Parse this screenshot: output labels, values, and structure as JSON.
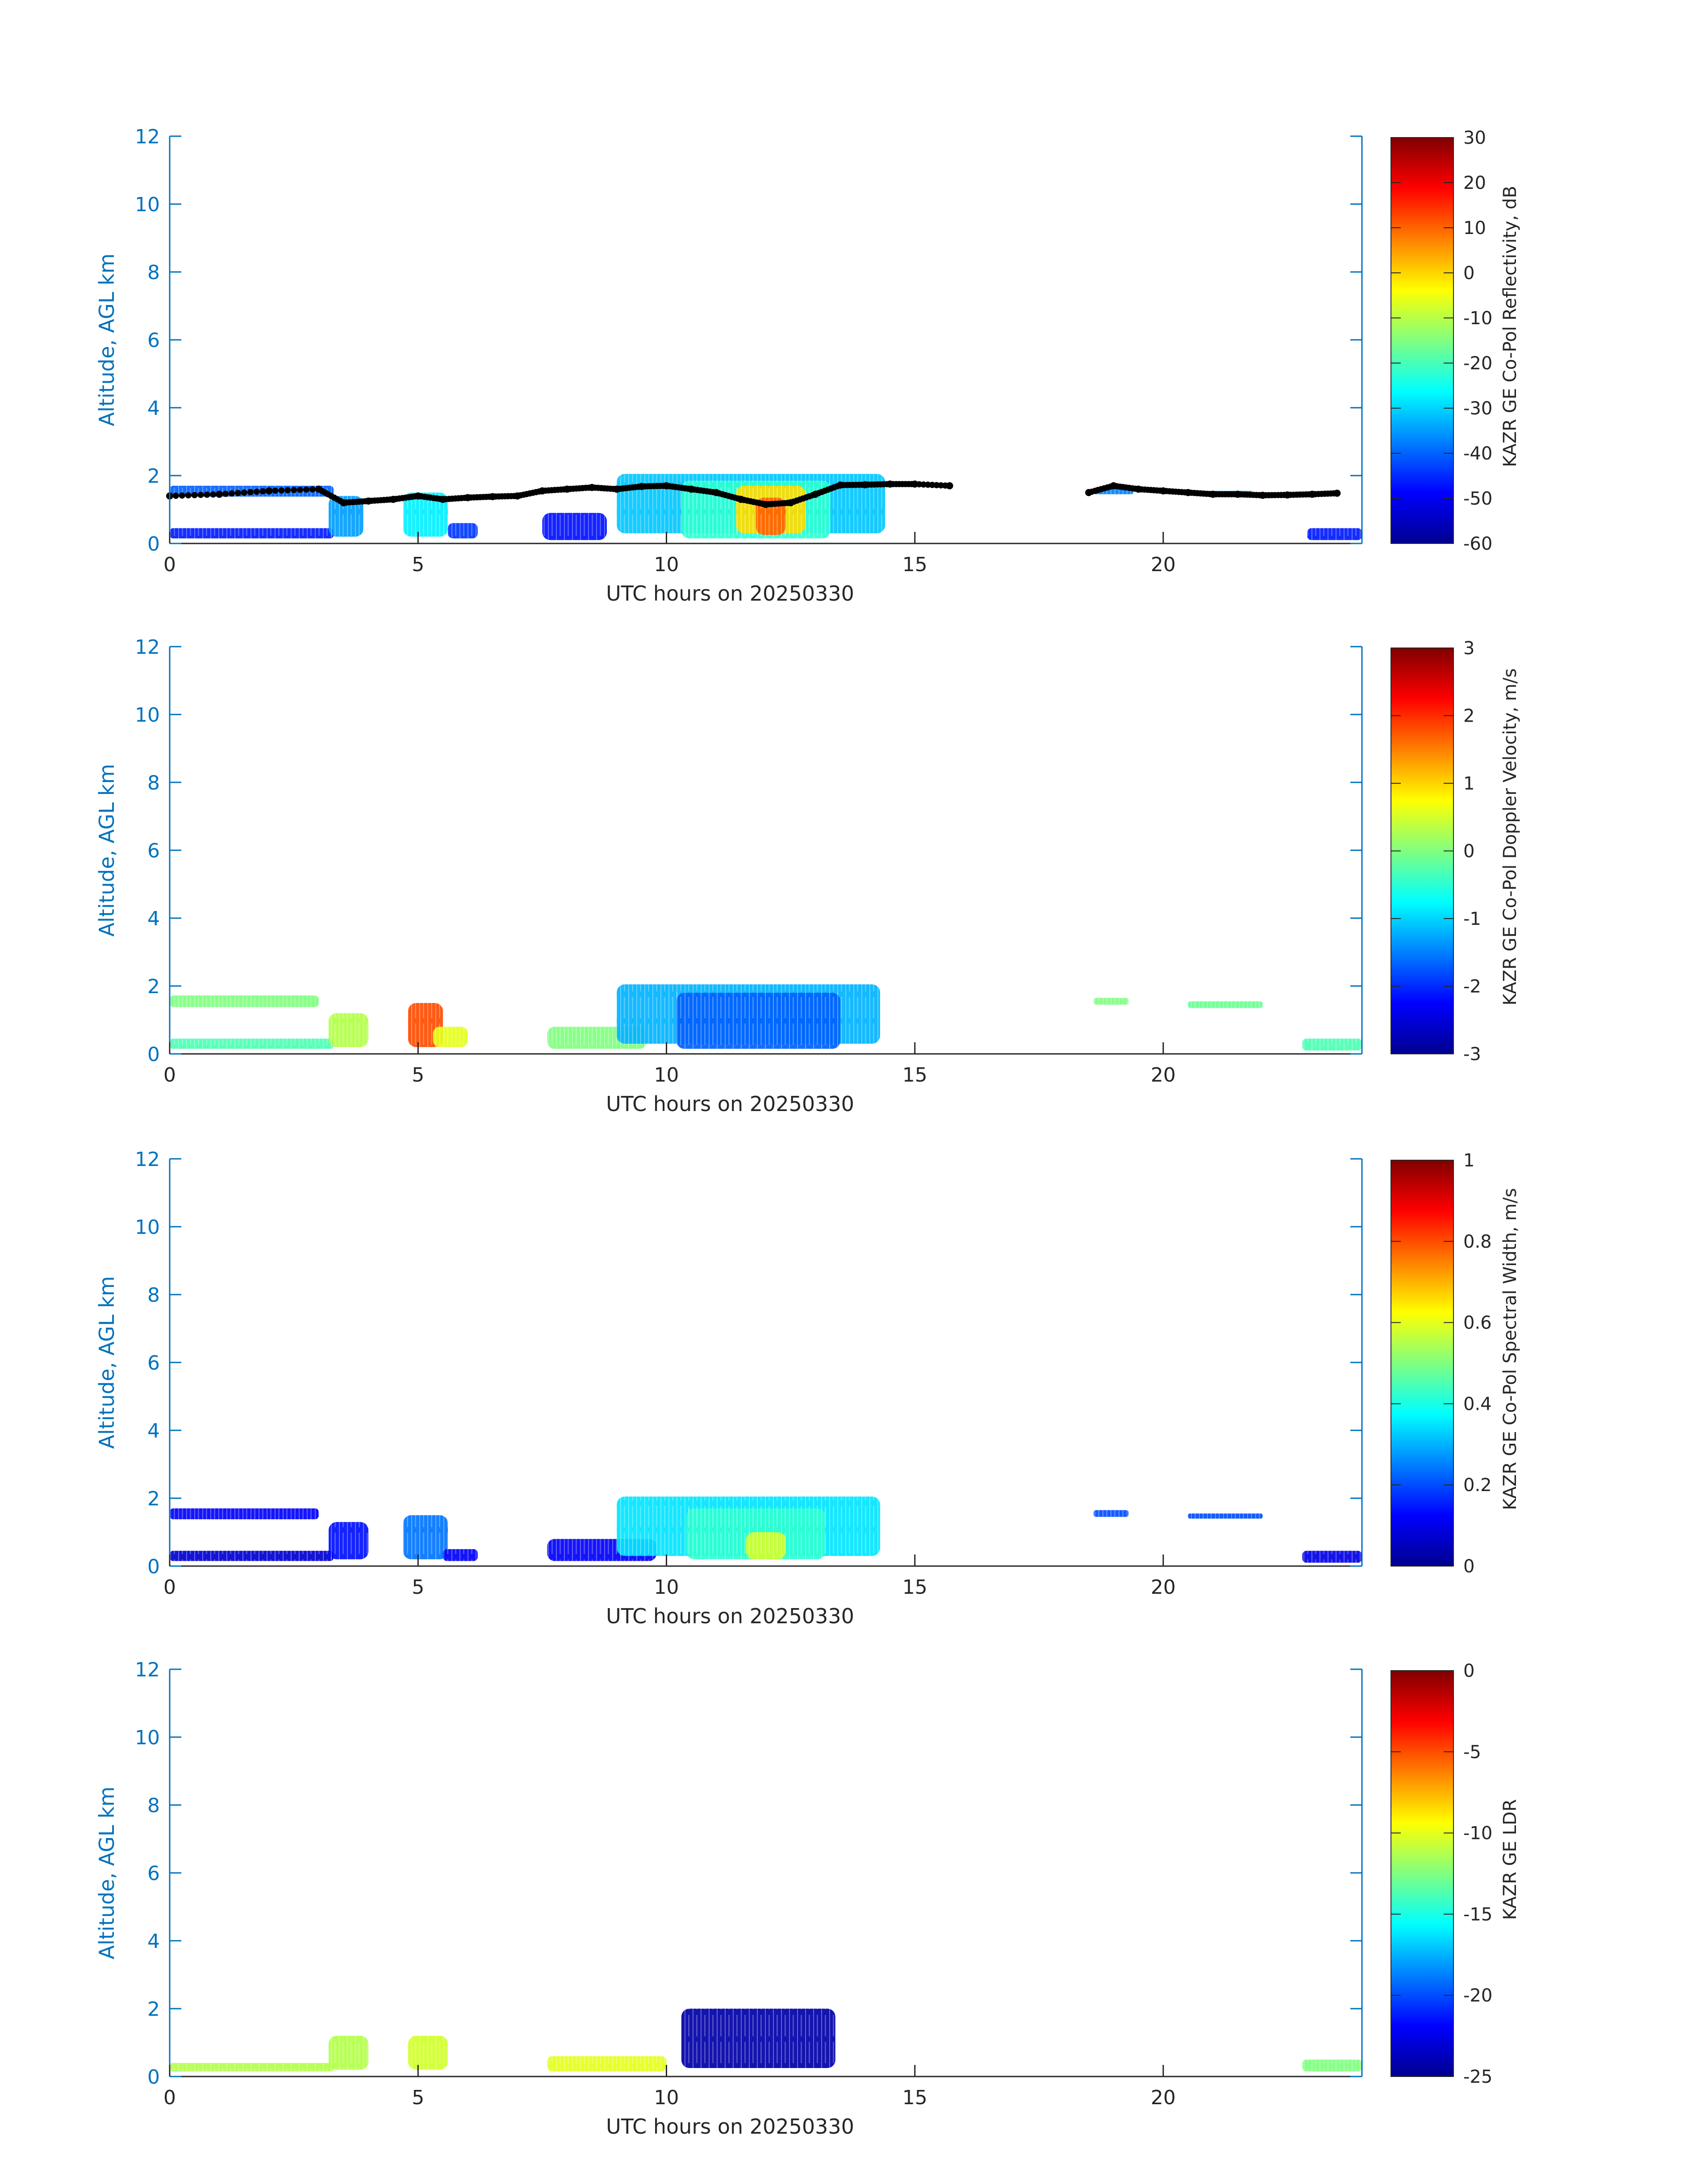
{
  "figure": {
    "panels": [
      {
        "colorbar_label": "KAZR GE Co-Pol Reflectivity, dB",
        "colorbar_ticks": [
          "30",
          "20",
          "10",
          "0",
          "-10",
          "-20",
          "-30",
          "-40",
          "-50",
          "-60"
        ],
        "clim": [
          -60,
          30
        ],
        "has_cloud_base": true,
        "blobs": [
          {
            "x0": 0.0,
            "x1": 3.3,
            "y0": 1.38,
            "y1": 1.7,
            "v": 0.22
          },
          {
            "x0": 0.0,
            "x1": 3.3,
            "y0": 0.15,
            "y1": 0.45,
            "v": 0.15
          },
          {
            "x0": 3.2,
            "x1": 3.9,
            "y0": 0.2,
            "y1": 1.4,
            "v": 0.28
          },
          {
            "x0": 4.7,
            "x1": 5.6,
            "y0": 0.2,
            "y1": 1.5,
            "v": 0.36
          },
          {
            "x0": 5.6,
            "x1": 6.2,
            "y0": 0.15,
            "y1": 0.6,
            "v": 0.18
          },
          {
            "x0": 7.5,
            "x1": 8.8,
            "y0": 0.1,
            "y1": 0.9,
            "v": 0.14
          },
          {
            "x0": 9.0,
            "x1": 14.4,
            "y0": 0.3,
            "y1": 2.05,
            "v": 0.32
          },
          {
            "x0": 10.3,
            "x1": 13.3,
            "y0": 0.15,
            "y1": 1.85,
            "v": 0.42
          },
          {
            "x0": 11.4,
            "x1": 12.8,
            "y0": 0.3,
            "y1": 1.7,
            "v": 0.66
          },
          {
            "x0": 11.8,
            "x1": 12.4,
            "y0": 0.25,
            "y1": 1.35,
            "v": 0.78
          },
          {
            "x0": 18.6,
            "x1": 19.4,
            "y0": 1.45,
            "y1": 1.65,
            "v": 0.25
          },
          {
            "x0": 20.6,
            "x1": 21.8,
            "y0": 1.4,
            "y1": 1.55,
            "v": 0.27
          },
          {
            "x0": 22.9,
            "x1": 24.0,
            "y0": 0.1,
            "y1": 0.45,
            "v": 0.15
          }
        ]
      },
      {
        "colorbar_label": "KAZR GE Co-Pol Doppler Velocity, m/s",
        "colorbar_ticks": [
          "3",
          "2",
          "1",
          "0",
          "-1",
          "-2",
          "-3"
        ],
        "clim": [
          -3,
          3
        ],
        "has_cloud_base": false,
        "blobs": [
          {
            "x0": 0.0,
            "x1": 3.0,
            "y0": 1.38,
            "y1": 1.72,
            "v": 0.5
          },
          {
            "x0": 0.0,
            "x1": 3.3,
            "y0": 0.15,
            "y1": 0.45,
            "v": 0.45
          },
          {
            "x0": 3.2,
            "x1": 4.0,
            "y0": 0.2,
            "y1": 1.2,
            "v": 0.55
          },
          {
            "x0": 4.8,
            "x1": 5.5,
            "y0": 0.2,
            "y1": 1.5,
            "v": 0.8
          },
          {
            "x0": 5.3,
            "x1": 6.0,
            "y0": 0.2,
            "y1": 0.8,
            "v": 0.6
          },
          {
            "x0": 7.6,
            "x1": 9.6,
            "y0": 0.15,
            "y1": 0.8,
            "v": 0.5
          },
          {
            "x0": 9.0,
            "x1": 14.3,
            "y0": 0.3,
            "y1": 2.05,
            "v": 0.3
          },
          {
            "x0": 10.2,
            "x1": 13.5,
            "y0": 0.15,
            "y1": 1.8,
            "v": 0.22
          },
          {
            "x0": 18.6,
            "x1": 19.3,
            "y0": 1.45,
            "y1": 1.65,
            "v": 0.5
          },
          {
            "x0": 20.5,
            "x1": 22.0,
            "y0": 1.35,
            "y1": 1.55,
            "v": 0.48
          },
          {
            "x0": 22.8,
            "x1": 24.0,
            "y0": 0.1,
            "y1": 0.45,
            "v": 0.45
          }
        ]
      },
      {
        "colorbar_label": "KAZR GE Co-Pol Spectral Width, m/s",
        "colorbar_ticks": [
          "1",
          "0.8",
          "0.6",
          "0.4",
          "0.2",
          "0"
        ],
        "clim": [
          0,
          1
        ],
        "has_cloud_base": false,
        "blobs": [
          {
            "x0": 0.0,
            "x1": 3.0,
            "y0": 1.38,
            "y1": 1.7,
            "v": 0.12
          },
          {
            "x0": 0.0,
            "x1": 3.3,
            "y0": 0.15,
            "y1": 0.45,
            "v": 0.08
          },
          {
            "x0": 3.2,
            "x1": 4.0,
            "y0": 0.2,
            "y1": 1.3,
            "v": 0.14
          },
          {
            "x0": 4.7,
            "x1": 5.6,
            "y0": 0.2,
            "y1": 1.5,
            "v": 0.24
          },
          {
            "x0": 5.5,
            "x1": 6.2,
            "y0": 0.15,
            "y1": 0.5,
            "v": 0.12
          },
          {
            "x0": 7.6,
            "x1": 9.8,
            "y0": 0.15,
            "y1": 0.8,
            "v": 0.12
          },
          {
            "x0": 9.0,
            "x1": 14.3,
            "y0": 0.3,
            "y1": 2.05,
            "v": 0.35
          },
          {
            "x0": 10.4,
            "x1": 13.2,
            "y0": 0.2,
            "y1": 1.7,
            "v": 0.42
          },
          {
            "x0": 11.6,
            "x1": 12.4,
            "y0": 0.2,
            "y1": 1.0,
            "v": 0.58
          },
          {
            "x0": 18.6,
            "x1": 19.3,
            "y0": 1.45,
            "y1": 1.65,
            "v": 0.2
          },
          {
            "x0": 20.5,
            "x1": 22.0,
            "y0": 1.4,
            "y1": 1.55,
            "v": 0.2
          },
          {
            "x0": 22.8,
            "x1": 24.0,
            "y0": 0.1,
            "y1": 0.45,
            "v": 0.1
          }
        ]
      },
      {
        "colorbar_label": "KAZR GE LDR",
        "colorbar_ticks": [
          "0",
          "-5",
          "-10",
          "-15",
          "-20",
          "-25"
        ],
        "clim": [
          -25,
          0
        ],
        "has_cloud_base": false,
        "blobs": [
          {
            "x0": 0.0,
            "x1": 3.3,
            "y0": 0.15,
            "y1": 0.4,
            "v": 0.55
          },
          {
            "x0": 3.2,
            "x1": 4.0,
            "y0": 0.2,
            "y1": 1.2,
            "v": 0.55
          },
          {
            "x0": 4.8,
            "x1": 5.6,
            "y0": 0.2,
            "y1": 1.2,
            "v": 0.58
          },
          {
            "x0": 7.6,
            "x1": 10.0,
            "y0": 0.15,
            "y1": 0.6,
            "v": 0.6
          },
          {
            "x0": 10.3,
            "x1": 13.4,
            "y0": 0.25,
            "y1": 2.0,
            "v": 0.04
          },
          {
            "x0": 22.8,
            "x1": 24.0,
            "y0": 0.15,
            "y1": 0.5,
            "v": 0.5
          }
        ]
      }
    ],
    "ylabel": "Altitude, AGL km",
    "xlabel": "UTC hours on 20250330",
    "yticks": [
      "0",
      "2",
      "4",
      "6",
      "8",
      "10",
      "12"
    ],
    "xticks": [
      "0",
      "5",
      "10",
      "15",
      "20"
    ],
    "axis_color": "#0072BD",
    "colormap": "jet"
  },
  "chart_data": [
    {
      "type": "heatmap",
      "xlabel": "UTC hours on 20250330",
      "ylabel": "Altitude, AGL km",
      "xlim": [
        0,
        24
      ],
      "ylim": [
        0,
        12
      ],
      "colorbar": {
        "label": "KAZR GE Co-Pol Reflectivity, dB",
        "range": [
          -60,
          30
        ],
        "ticks": [
          30,
          20,
          10,
          0,
          -10,
          -20,
          -30,
          -40,
          -50,
          -60
        ],
        "colormap": "jet"
      },
      "overlay": {
        "type": "scatter",
        "color": "#000000",
        "x": [
          0,
          1,
          2,
          3,
          3.5,
          4,
          4.5,
          5,
          5.5,
          6,
          6.5,
          7,
          7.5,
          8,
          8.5,
          9,
          9.5,
          10,
          10.5,
          11,
          11.5,
          12,
          12.5,
          13,
          13.5,
          14,
          14.5,
          15,
          15.7,
          18.5,
          19,
          19.5,
          20,
          20.5,
          21,
          21.5,
          22,
          22.5,
          23,
          23.5
        ],
        "y": [
          1.4,
          1.45,
          1.55,
          1.6,
          1.2,
          1.25,
          1.3,
          1.4,
          1.3,
          1.35,
          1.38,
          1.4,
          1.55,
          1.6,
          1.65,
          1.6,
          1.68,
          1.7,
          1.6,
          1.5,
          1.3,
          1.15,
          1.2,
          1.45,
          1.72,
          1.73,
          1.75,
          1.75,
          1.7,
          1.5,
          1.7,
          1.6,
          1.55,
          1.5,
          1.45,
          1.45,
          1.42,
          1.43,
          1.45,
          1.48
        ]
      }
    },
    {
      "type": "heatmap",
      "xlabel": "UTC hours on 20250330",
      "ylabel": "Altitude, AGL km",
      "xlim": [
        0,
        24
      ],
      "ylim": [
        0,
        12
      ],
      "colorbar": {
        "label": "KAZR GE Co-Pol Doppler Velocity, m/s",
        "range": [
          -3,
          3
        ],
        "ticks": [
          3,
          2,
          1,
          0,
          -1,
          -2,
          -3
        ],
        "colormap": "jet"
      }
    },
    {
      "type": "heatmap",
      "xlabel": "UTC hours on 20250330",
      "ylabel": "Altitude, AGL km",
      "xlim": [
        0,
        24
      ],
      "ylim": [
        0,
        12
      ],
      "colorbar": {
        "label": "KAZR GE Co-Pol Spectral Width, m/s",
        "range": [
          0,
          1
        ],
        "ticks": [
          1,
          0.8,
          0.6,
          0.4,
          0.2,
          0
        ],
        "colormap": "jet"
      }
    },
    {
      "type": "heatmap",
      "xlabel": "UTC hours on 20250330",
      "ylabel": "Altitude, AGL km",
      "xlim": [
        0,
        24
      ],
      "ylim": [
        0,
        12
      ],
      "colorbar": {
        "label": "KAZR GE LDR",
        "range": [
          -25,
          0
        ],
        "ticks": [
          0,
          -5,
          -10,
          -15,
          -20,
          -25
        ],
        "colormap": "jet"
      }
    }
  ]
}
